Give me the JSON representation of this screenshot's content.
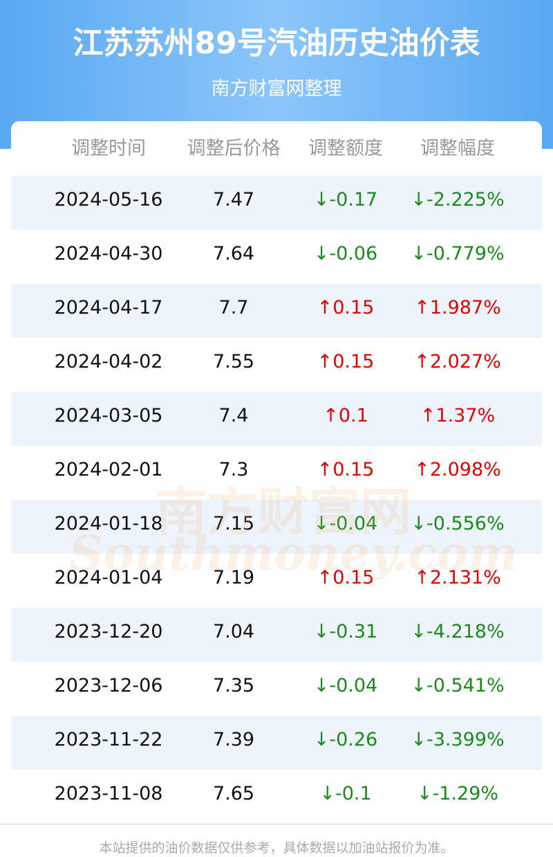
{
  "header": {
    "title": "江苏苏州89号汽油历史油价表",
    "subtitle": "南方财富网整理"
  },
  "table": {
    "columns": [
      "调整时间",
      "调整后价格",
      "调整额度",
      "调整幅度"
    ],
    "rows": [
      [
        "2024-05-16",
        "7.47",
        "↓-0.17",
        "↓-2.225%"
      ],
      [
        "2024-04-30",
        "7.64",
        "↓-0.06",
        "↓-0.779%"
      ],
      [
        "2024-04-17",
        "7.7",
        "↑0.15",
        "↑1.987%"
      ],
      [
        "2024-04-02",
        "7.55",
        "↑0.15",
        "↑2.027%"
      ],
      [
        "2024-03-05",
        "7.4",
        "↑0.1",
        "↑1.37%"
      ],
      [
        "2024-02-01",
        "7.3",
        "↑0.15",
        "↑2.098%"
      ],
      [
        "2024-01-18",
        "7.15",
        "↓-0.04",
        "↓-0.556%"
      ],
      [
        "2024-01-04",
        "7.19",
        "↑0.15",
        "↑2.131%"
      ],
      [
        "2023-12-20",
        "7.04",
        "↓-0.31",
        "↓-4.218%"
      ],
      [
        "2023-12-06",
        "7.35",
        "↓-0.04",
        "↓-0.541%"
      ],
      [
        "2023-11-22",
        "7.39",
        "↓-0.26",
        "↓-3.399%"
      ],
      [
        "2023-11-08",
        "7.65",
        "↓-0.1",
        "↓-1.29%"
      ]
    ]
  },
  "watermark": {
    "cn": "南方财富网",
    "en": "Southmoney.com"
  },
  "footer": "本站提供的油价数据仅供参考，具体数据以加油站报价为准。"
}
